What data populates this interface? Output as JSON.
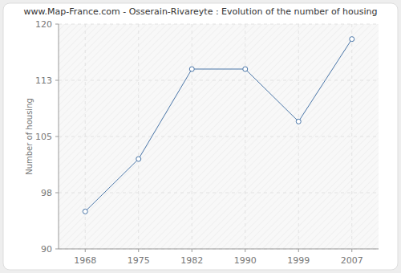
{
  "chart_data": {
    "type": "line",
    "title": "www.Map-France.com - Osserain-Rivareyte : Evolution of the number of housing",
    "y_label": "Number of housing",
    "categories": [
      "1968",
      "1975",
      "1982",
      "1990",
      "1999",
      "2007"
    ],
    "values": [
      95,
      102,
      114,
      114,
      107,
      118
    ],
    "color": "#4a76a8",
    "marker": "circle",
    "ylim": [
      90,
      120
    ],
    "yticks": [
      90,
      {
        "value": 97.5,
        "label": "98"
      },
      105,
      {
        "value": 112.5,
        "label": "113"
      },
      120
    ],
    "grid": true
  }
}
